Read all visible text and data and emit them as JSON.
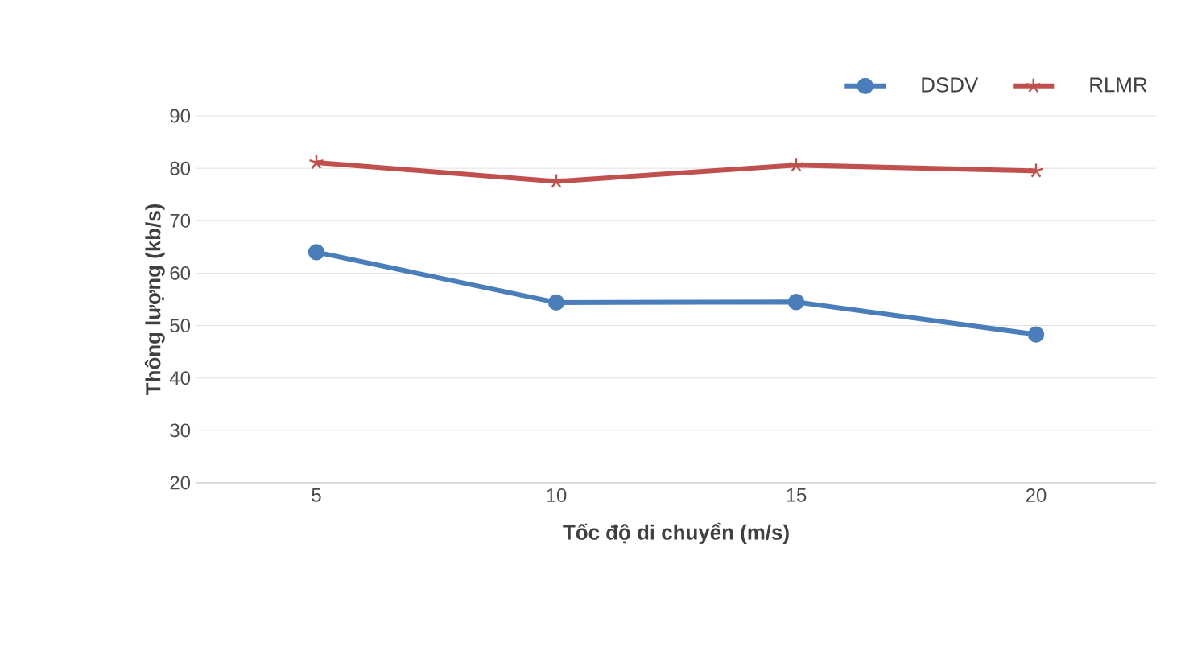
{
  "chart_data": {
    "type": "line",
    "xlabel": "Tốc độ di chuyển (m/s)",
    "ylabel": "Thông lượng (kb/s)",
    "categories": [
      "5",
      "10",
      "15",
      "20"
    ],
    "series": [
      {
        "name": "DSDV",
        "color": "#4a7ebb",
        "marker": "circle",
        "values": [
          64,
          54.4,
          54.5,
          48.3
        ]
      },
      {
        "name": "RLMR",
        "color": "#c0504d",
        "marker": "cross",
        "values": [
          81.1,
          77.5,
          80.6,
          79.5
        ]
      }
    ],
    "ylim": [
      20,
      90
    ],
    "yticks": [
      20,
      30,
      40,
      50,
      60,
      70,
      80,
      90
    ],
    "grid": "y",
    "legend": "top right"
  }
}
